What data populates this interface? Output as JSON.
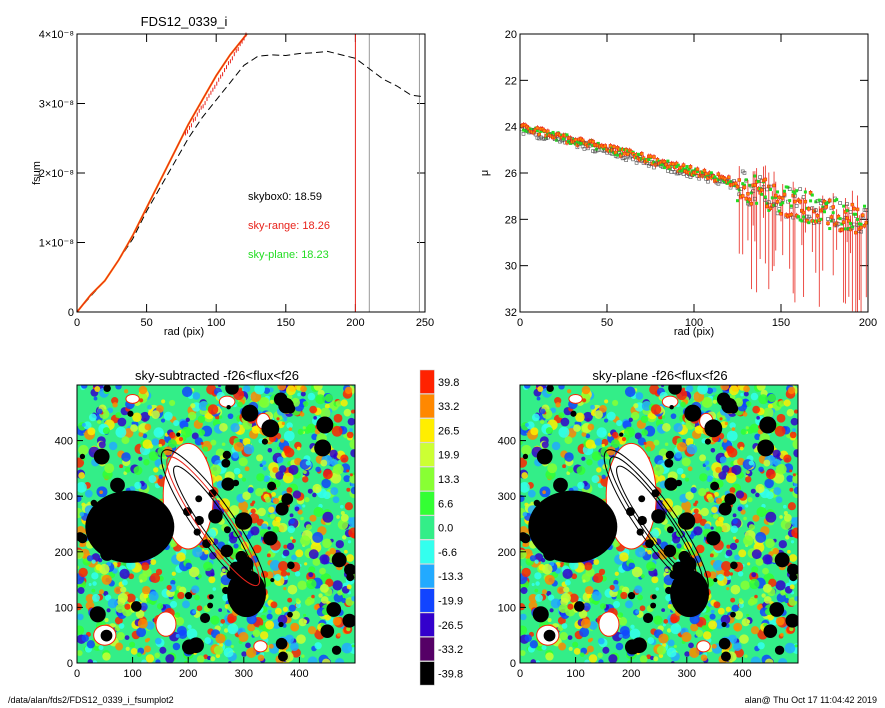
{
  "footer": {
    "path": "/data/alan/fds2/FDS12_0339_i_fsumplot2",
    "stamp": "alan@  Thu Oct 17 11:04:42 2019"
  },
  "colors": {
    "red": "#e8231b",
    "green": "#22dd22",
    "orange": "#ff8800",
    "gray": "#999999"
  },
  "chart_data": [
    {
      "type": "line",
      "title": "FDS12_0339_i",
      "xlabel": "rad (pix)",
      "ylabel": "fsum",
      "xlim": [
        0,
        250
      ],
      "ylim": [
        0,
        4e-08
      ],
      "xticks": [
        "0",
        "50",
        "100",
        "150",
        "200",
        "250"
      ],
      "yticks": [
        "0",
        "1×10⁻⁸",
        "2×10⁻⁸",
        "3×10⁻⁸",
        "4×10⁻⁸"
      ],
      "vlines": [
        200,
        210,
        246
      ],
      "annotations": [
        {
          "text": "skybox0: 18.59",
          "color": "#000000"
        },
        {
          "text": "sky-range: 18.26",
          "color": "#e8231b"
        },
        {
          "text": "sky-plane: 18.23",
          "color": "#22dd22"
        }
      ],
      "series": [
        {
          "style": "solid-red-orange",
          "x": [
            0,
            10,
            20,
            30,
            40,
            50,
            60,
            70,
            80,
            90,
            100,
            110,
            122
          ],
          "values": [
            0,
            2.5e-09,
            4.5e-09,
            7.5e-09,
            1.1e-08,
            1.5e-08,
            1.9e-08,
            2.3e-08,
            2.7e-08,
            3.05e-08,
            3.4e-08,
            3.7e-08,
            4e-08
          ]
        },
        {
          "style": "dashed-black",
          "x": [
            0,
            10,
            20,
            30,
            40,
            50,
            60,
            70,
            80,
            90,
            100,
            110,
            120,
            130,
            140,
            150,
            160,
            170,
            180,
            190,
            200,
            210,
            220,
            230,
            240,
            248
          ],
          "values": [
            0,
            2.3e-09,
            4.5e-09,
            7.5e-09,
            1.05e-08,
            1.45e-08,
            1.8e-08,
            2.15e-08,
            2.5e-08,
            2.8e-08,
            3.05e-08,
            3.3e-08,
            3.55e-08,
            3.68e-08,
            3.7e-08,
            3.69e-08,
            3.72e-08,
            3.73e-08,
            3.75e-08,
            3.7e-08,
            3.65e-08,
            3.5e-08,
            3.35e-08,
            3.25e-08,
            3.12e-08,
            3.1e-08
          ]
        }
      ]
    },
    {
      "type": "scatter",
      "xlabel": "rad (pix)",
      "ylabel": "μ",
      "xlim": [
        0,
        200
      ],
      "ylim": [
        32,
        20
      ],
      "xticks": [
        "0",
        "50",
        "100",
        "150",
        "200"
      ],
      "yticks": [
        "20",
        "22",
        "24",
        "26",
        "28",
        "30",
        "32"
      ],
      "trend": {
        "x": [
          0,
          50,
          100,
          125,
          150,
          175,
          200
        ],
        "values": [
          24.0,
          24.9,
          25.9,
          26.4,
          27.0,
          27.5,
          28.0
        ]
      }
    },
    {
      "type": "heatmap",
      "title": "sky-subtracted -f26<flux<f26",
      "xlim": [
        0,
        500
      ],
      "ylim": [
        0,
        500
      ],
      "xticks": [
        "0",
        "100",
        "200",
        "300",
        "400"
      ],
      "yticks": [
        "0",
        "100",
        "200",
        "300",
        "400"
      ]
    },
    {
      "type": "heatmap",
      "title": "sky-plane -f26<flux<f26",
      "xlim": [
        0,
        500
      ],
      "ylim": [
        0,
        500
      ],
      "xticks": [
        "0",
        "100",
        "200",
        "300",
        "400"
      ],
      "yticks": [
        "0",
        "100",
        "200",
        "300",
        "400"
      ]
    },
    {
      "type": "colorbar",
      "levels": [
        "39.8",
        "33.2",
        "26.5",
        "19.9",
        "13.3",
        "6.6",
        "0.0",
        "-6.6",
        "-13.3",
        "-19.9",
        "-26.5",
        "-33.2",
        "-39.8"
      ],
      "colors": [
        "#ff2200",
        "#ff8800",
        "#ffee00",
        "#ccff33",
        "#88ff33",
        "#33ff33",
        "#33ee88",
        "#33ffee",
        "#22aaff",
        "#1144ff",
        "#3300cc",
        "#550066",
        "#000000"
      ]
    }
  ]
}
